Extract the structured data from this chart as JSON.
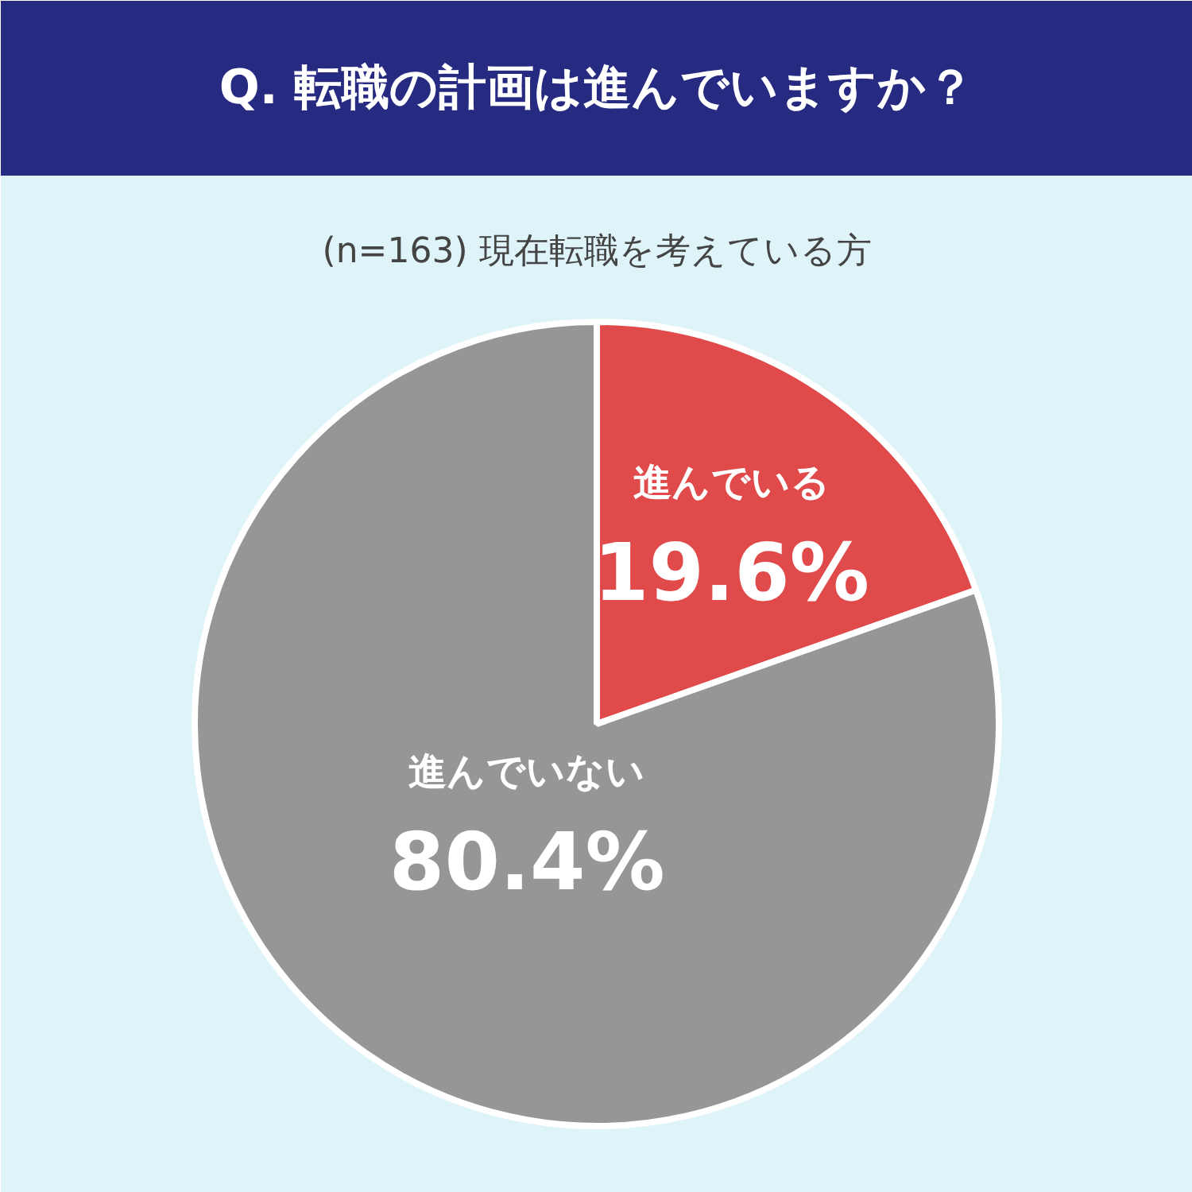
{
  "chart_data": {
    "type": "pie",
    "title": "Q. 転職の計画は進んでいますか？",
    "subtitle": "(n=163) 現在転職を考えている方",
    "categories": [
      "進んでいる",
      "進んでいない"
    ],
    "values": [
      19.6,
      80.4
    ],
    "colors": [
      "#e04a4a",
      "#969696"
    ],
    "value_labels": [
      "19.6%",
      "80.4%"
    ]
  }
}
